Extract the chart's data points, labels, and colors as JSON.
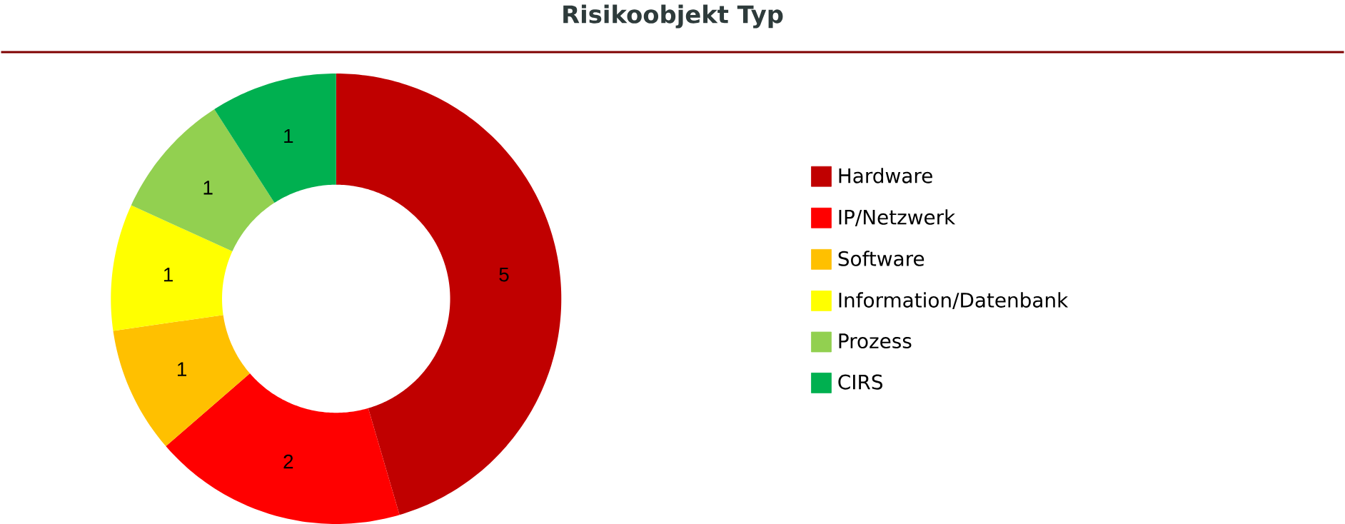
{
  "chart_data": {
    "type": "donut",
    "title": "Risikoobjekt Typ",
    "categories": [
      "Hardware",
      "IP/Netzwerk",
      "Software",
      "Information/Datenbank",
      "Prozess",
      "CIRS"
    ],
    "values": [
      5,
      2,
      1,
      1,
      1,
      1
    ],
    "colors": [
      "#c00000",
      "#ff0000",
      "#ffc000",
      "#ffff00",
      "#92d050",
      "#00b050"
    ],
    "data_labels": true,
    "legend": "right"
  }
}
